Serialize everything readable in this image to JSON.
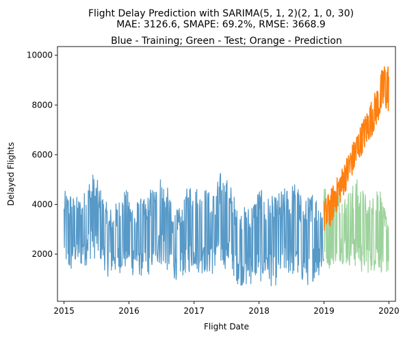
{
  "chart_data": {
    "type": "line",
    "suptitle_lines": [
      "Flight Delay Prediction with SARIMA(5, 1, 2)(2, 1, 0, 30)",
      "MAE: 3126.6, SMAPE: 69.2%, RMSE: 3668.9"
    ],
    "title": "Blue - Training; Green - Test; Orange - Prediction",
    "xlabel": "Flight Date",
    "ylabel": "Delayed Flights",
    "x_range": [
      "2014-11-25",
      "2020-02-07"
    ],
    "ylim": [
      100,
      10350
    ],
    "x_ticks": [
      {
        "label": "2015",
        "date": "2015-01-01"
      },
      {
        "label": "2016",
        "date": "2016-01-01"
      },
      {
        "label": "2017",
        "date": "2017-01-01"
      },
      {
        "label": "2018",
        "date": "2018-01-01"
      },
      {
        "label": "2019",
        "date": "2019-01-01"
      },
      {
        "label": "2020",
        "date": "2020-01-01"
      }
    ],
    "y_ticks": [
      {
        "label": "2000",
        "value": 2000
      },
      {
        "label": "4000",
        "value": 4000
      },
      {
        "label": "6000",
        "value": 6000
      },
      {
        "label": "8000",
        "value": 8000
      },
      {
        "label": "10000",
        "value": 10000
      }
    ],
    "grid": false,
    "series": [
      {
        "role": "training",
        "color": "#1f77b4",
        "opacity": 0.75,
        "date_range": [
          "2015-01-01",
          "2018-12-31"
        ],
        "x": [
          "2015-01-01",
          "2015-02-01",
          "2015-03-01",
          "2015-04-01",
          "2015-05-01",
          "2015-06-01",
          "2015-07-01",
          "2015-08-01",
          "2015-09-01",
          "2015-10-01",
          "2015-11-01",
          "2015-12-01",
          "2016-01-01",
          "2016-02-01",
          "2016-03-01",
          "2016-04-01",
          "2016-05-01",
          "2016-06-01",
          "2016-07-01",
          "2016-08-01",
          "2016-09-01",
          "2016-10-01",
          "2016-11-01",
          "2016-12-01",
          "2017-01-01",
          "2017-02-01",
          "2017-03-01",
          "2017-04-01",
          "2017-05-01",
          "2017-06-01",
          "2017-07-01",
          "2017-08-01",
          "2017-09-01",
          "2017-10-01",
          "2017-11-01",
          "2017-12-01",
          "2018-01-01",
          "2018-02-01",
          "2018-03-01",
          "2018-04-01",
          "2018-05-01",
          "2018-06-01",
          "2018-07-01",
          "2018-08-01",
          "2018-09-01",
          "2018-10-01",
          "2018-11-01",
          "2018-12-01"
        ],
        "low": [
          1700,
          1000,
          1500,
          1400,
          1500,
          1800,
          1800,
          1600,
          1100,
          1100,
          1200,
          1300,
          1300,
          1000,
          1100,
          1000,
          1200,
          1500,
          1500,
          1300,
          900,
          1000,
          1100,
          1200,
          1400,
          1200,
          1200,
          1100,
          1200,
          1400,
          1400,
          1200,
          800,
          700,
          600,
          900,
          900,
          800,
          700,
          700,
          900,
          1100,
          1100,
          1000,
          800,
          700,
          900,
          1100
        ],
        "high": [
          4500,
          4700,
          4300,
          4400,
          4600,
          5400,
          5100,
          4600,
          4000,
          3900,
          4200,
          4700,
          4500,
          4100,
          4300,
          4200,
          4700,
          4900,
          5300,
          4800,
          3900,
          3800,
          4000,
          5000,
          5000,
          4600,
          4800,
          4500,
          4700,
          5400,
          5100,
          4800,
          3800,
          3900,
          4000,
          4300,
          4800,
          4300,
          4400,
          4300,
          4600,
          4700,
          4900,
          5000,
          4200,
          4300,
          4700,
          4400
        ]
      },
      {
        "role": "test",
        "color": "#2ca02c",
        "opacity": 0.47,
        "date_range": [
          "2019-01-01",
          "2019-12-31"
        ],
        "x": [
          "2019-01-01",
          "2019-02-01",
          "2019-03-01",
          "2019-04-01",
          "2019-05-01",
          "2019-06-01",
          "2019-07-01",
          "2019-08-01",
          "2019-09-01",
          "2019-10-01",
          "2019-11-01",
          "2019-12-01"
        ],
        "low": [
          1800,
          1400,
          1600,
          1700,
          1500,
          1500,
          1400,
          1200,
          1200,
          1300,
          1300,
          1200
        ],
        "high": [
          4900,
          4300,
          4800,
          4600,
          4500,
          4700,
          5100,
          4800,
          4300,
          4300,
          5400,
          3900
        ]
      },
      {
        "role": "prediction",
        "color": "#ff7f0e",
        "opacity": 1,
        "date_range": [
          "2019-01-01",
          "2019-12-31"
        ],
        "x": [
          "2019-01-01",
          "2019-02-01",
          "2019-03-01",
          "2019-04-01",
          "2019-05-01",
          "2019-06-01",
          "2019-07-01",
          "2019-08-01",
          "2019-09-01",
          "2019-10-01",
          "2019-11-01",
          "2019-12-01"
        ],
        "low": [
          2800,
          3000,
          3500,
          4000,
          4500,
          5000,
          5500,
          6000,
          6400,
          6800,
          7300,
          7700
        ],
        "high": [
          4200,
          4500,
          4900,
          5300,
          5800,
          6300,
          6800,
          7300,
          7800,
          8300,
          8800,
          9700
        ]
      }
    ]
  }
}
